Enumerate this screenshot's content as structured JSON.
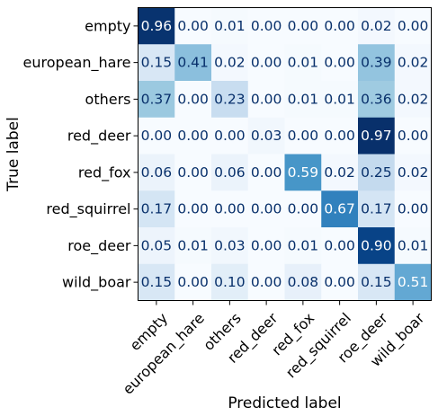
{
  "chart_data": {
    "type": "heatmap",
    "xlabel": "Predicted label",
    "ylabel": "True label",
    "row_labels": [
      "empty",
      "european_hare",
      "others",
      "red_deer",
      "red_fox",
      "red_squirrel",
      "roe_deer",
      "wild_boar"
    ],
    "col_labels": [
      "empty",
      "european_hare",
      "others",
      "red_deer",
      "red_fox",
      "red_squirrel",
      "roe_deer",
      "wild_boar"
    ],
    "values": [
      [
        0.96,
        0.0,
        0.01,
        0.0,
        0.0,
        0.0,
        0.02,
        0.0
      ],
      [
        0.15,
        0.41,
        0.02,
        0.0,
        0.01,
        0.0,
        0.39,
        0.02
      ],
      [
        0.37,
        0.0,
        0.23,
        0.0,
        0.01,
        0.01,
        0.36,
        0.02
      ],
      [
        0.0,
        0.0,
        0.0,
        0.03,
        0.0,
        0.0,
        0.97,
        0.0
      ],
      [
        0.06,
        0.0,
        0.06,
        0.0,
        0.59,
        0.02,
        0.25,
        0.02
      ],
      [
        0.17,
        0.0,
        0.0,
        0.0,
        0.0,
        0.67,
        0.17,
        0.0
      ],
      [
        0.05,
        0.01,
        0.03,
        0.0,
        0.01,
        0.0,
        0.9,
        0.01
      ],
      [
        0.15,
        0.0,
        0.1,
        0.0,
        0.08,
        0.0,
        0.15,
        0.51
      ]
    ],
    "value_format": "2 decimals",
    "colormap": "Blues",
    "vmin": 0.0,
    "vmax": 0.97,
    "grid": false,
    "legend": "none"
  }
}
